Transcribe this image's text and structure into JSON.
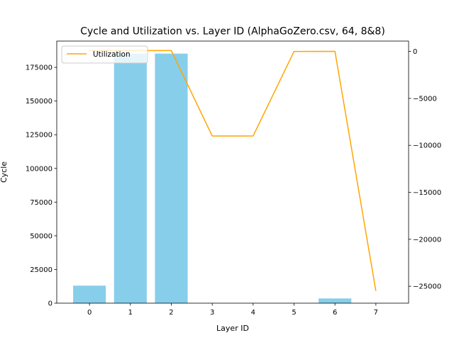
{
  "chart_data": {
    "type": "bar+line",
    "title": "Cycle and Utilization vs. Layer ID (AlphaGoZero.csv, 64, 8&8)",
    "xlabel": "Layer ID",
    "ylabel": "Cycle",
    "ylabel_right": "",
    "categories": [
      "0",
      "1",
      "2",
      "3",
      "4",
      "5",
      "6",
      "7"
    ],
    "x": [
      0,
      1,
      2,
      3,
      4,
      5,
      6,
      7
    ],
    "bars": {
      "name": "Cycle",
      "color": "#87ceeb",
      "values": [
        13000,
        185200,
        185200,
        0,
        0,
        0,
        3500,
        0
      ]
    },
    "line": {
      "name": "Utilization",
      "color": "#ffa500",
      "values": [
        95,
        95,
        95,
        -9000,
        -9000,
        -2,
        3,
        -25500
      ]
    },
    "xlim": [
      -0.8,
      7.8
    ],
    "ylim_left": [
      0,
      194500
    ],
    "ylim_right": [
      -26800,
      1100
    ],
    "yticks_left": [
      0,
      25000,
      50000,
      75000,
      100000,
      125000,
      150000,
      175000
    ],
    "yticks_right": [
      0,
      -5000,
      -10000,
      -15000,
      -20000,
      -25000
    ],
    "legend": {
      "position": "top-left",
      "entries": [
        "Utilization"
      ]
    },
    "grid": false
  }
}
